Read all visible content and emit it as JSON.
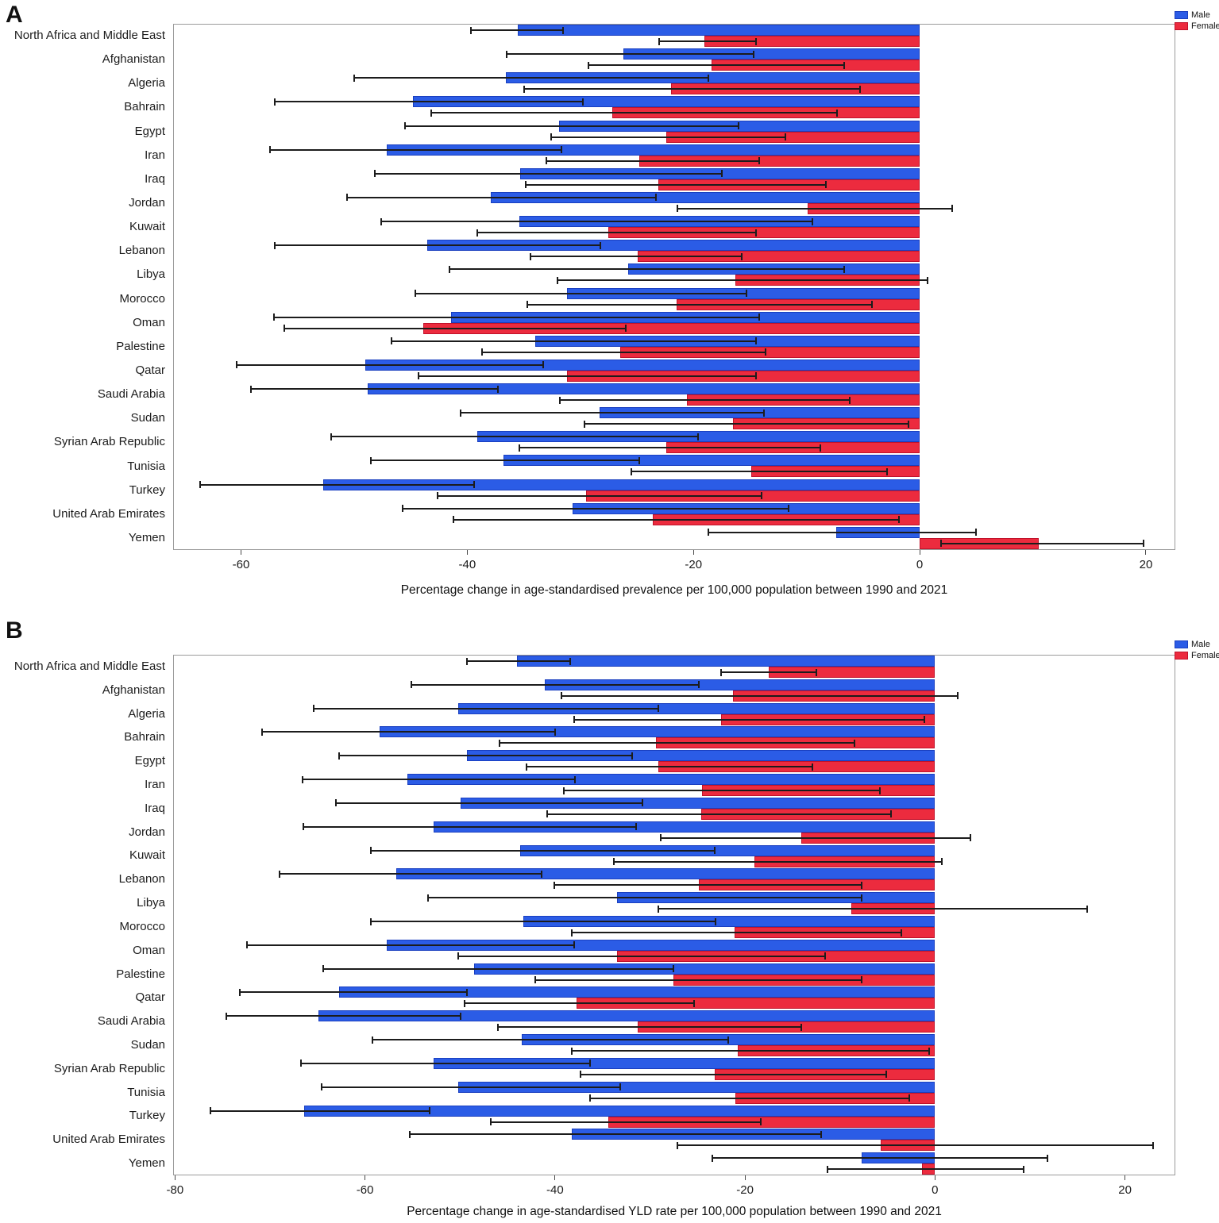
{
  "legend": {
    "male_label": "Male",
    "female_label": "Female"
  },
  "colors": {
    "male_fill": "#2B5CE6",
    "male_border": "#1A3FC0",
    "female_fill": "#EC2B3E",
    "female_border": "#C1122B",
    "error_bar": "#1c1c1c",
    "box_border": "#9b9b9b"
  },
  "chart_data": [
    {
      "type": "bar",
      "panel_label": "A",
      "orientation": "horizontal",
      "xlabel": "Percentage change in age-standardised prevalence per 100,000 population between 1990 and 2021",
      "xlim": [
        -66,
        22.6
      ],
      "xticks": [
        -60,
        -40,
        -20,
        0,
        20
      ],
      "legend_position": "top-right",
      "grid": false,
      "categories": [
        "North Africa and Middle East",
        "Afghanistan",
        "Algeria",
        "Bahrain",
        "Egypt",
        "Iran",
        "Iraq",
        "Jordan",
        "Kuwait",
        "Lebanon",
        "Libya",
        "Morocco",
        "Oman",
        "Palestine",
        "Qatar",
        "Saudi Arabia",
        "Sudan",
        "Syrian Arab Republic",
        "Tunisia",
        "Turkey",
        "United Arab Emirates",
        "Yemen"
      ],
      "series": [
        {
          "name": "Male",
          "values": [
            -35.5,
            -26.2,
            -36.6,
            -44.8,
            -31.9,
            -47.1,
            -35.3,
            -37.9,
            -35.4,
            -43.5,
            -25.8,
            -31.2,
            -41.4,
            -34.0,
            -49.0,
            -48.8,
            -28.3,
            -39.1,
            -36.8,
            -52.7,
            -30.7,
            -7.4
          ],
          "ci_low": [
            -39.7,
            -36.5,
            -50.0,
            -57.0,
            -45.5,
            -57.4,
            -48.2,
            -50.6,
            -47.6,
            -57.0,
            -41.6,
            -44.6,
            -57.1,
            -46.7,
            -60.4,
            -59.1,
            -40.6,
            -52.0,
            -48.5,
            -63.6,
            -45.7,
            -18.7
          ],
          "ci_high": [
            -31.5,
            -14.7,
            -18.7,
            -29.8,
            -16.0,
            -31.7,
            -17.5,
            -23.3,
            -9.5,
            -28.2,
            -6.7,
            -15.3,
            -14.2,
            -14.5,
            -33.3,
            -37.3,
            -13.8,
            -19.6,
            -24.8,
            -39.4,
            -11.6,
            5.0
          ]
        },
        {
          "name": "Female",
          "values": [
            -19.0,
            -18.4,
            -22.0,
            -27.2,
            -22.4,
            -24.8,
            -23.1,
            -9.9,
            -27.5,
            -24.9,
            -16.3,
            -21.5,
            -43.9,
            -26.5,
            -31.2,
            -20.6,
            -16.5,
            -22.4,
            -14.9,
            -29.5,
            -23.6,
            10.5
          ],
          "ci_low": [
            -23.0,
            -29.3,
            -35.0,
            -43.2,
            -32.6,
            -33.0,
            -34.8,
            -21.4,
            -39.1,
            -34.4,
            -32.0,
            -34.7,
            -56.2,
            -38.7,
            -44.3,
            -31.8,
            -29.6,
            -35.4,
            -25.5,
            -42.6,
            -41.2,
            1.9
          ],
          "ci_high": [
            -14.5,
            -6.7,
            -5.3,
            -7.3,
            -11.9,
            -14.2,
            -8.3,
            2.9,
            -14.5,
            -15.7,
            0.7,
            -4.2,
            -26.0,
            -13.6,
            -14.5,
            -6.2,
            -1.0,
            -8.8,
            -2.9,
            -14.0,
            -1.8,
            19.8
          ]
        }
      ]
    },
    {
      "type": "bar",
      "panel_label": "B",
      "orientation": "horizontal",
      "xlabel": "Percentage change in age-standardised YLD rate per 100,000 population between 1990 and 2021",
      "xlim": [
        -80.2,
        25.3
      ],
      "xticks": [
        -80,
        -60,
        -40,
        -20,
        0,
        20
      ],
      "legend_position": "top-right",
      "grid": false,
      "categories": [
        "North Africa and Middle East",
        "Afghanistan",
        "Algeria",
        "Bahrain",
        "Egypt",
        "Iran",
        "Iraq",
        "Jordan",
        "Kuwait",
        "Lebanon",
        "Libya",
        "Morocco",
        "Oman",
        "Palestine",
        "Qatar",
        "Saudi Arabia",
        "Sudan",
        "Syrian Arab Republic",
        "Tunisia",
        "Turkey",
        "United Arab Emirates",
        "Yemen"
      ],
      "series": [
        {
          "name": "Male",
          "values": [
            -44.0,
            -41.1,
            -50.2,
            -58.5,
            -49.3,
            -55.5,
            -49.9,
            -52.8,
            -43.7,
            -56.7,
            -33.5,
            -43.3,
            -57.7,
            -48.5,
            -62.7,
            -64.9,
            -43.5,
            -52.8,
            -50.2,
            -66.4,
            -38.2,
            -7.7
          ],
          "ci_low": [
            -49.3,
            -55.1,
            -65.4,
            -70.8,
            -62.7,
            -66.6,
            -63.1,
            -66.5,
            -59.4,
            -69.0,
            -53.4,
            -59.4,
            -72.4,
            -64.4,
            -73.2,
            -74.6,
            -59.2,
            -66.7,
            -64.6,
            -76.3,
            -55.3,
            -23.4
          ],
          "ci_high": [
            -38.4,
            -24.9,
            -29.1,
            -40.0,
            -31.9,
            -37.9,
            -30.8,
            -31.5,
            -23.2,
            -41.4,
            -7.7,
            -23.1,
            -38.0,
            -27.5,
            -49.3,
            -49.9,
            -21.8,
            -36.3,
            -33.1,
            -53.2,
            -12.0,
            11.8
          ]
        },
        {
          "name": "Female",
          "values": [
            -17.5,
            -21.3,
            -22.5,
            -29.4,
            -29.1,
            -24.5,
            -24.6,
            -14.1,
            -19.0,
            -24.9,
            -8.8,
            -21.1,
            -33.5,
            -27.5,
            -37.7,
            -31.3,
            -20.8,
            -23.2,
            -21.0,
            -34.4,
            -5.7,
            -1.4
          ],
          "ci_low": [
            -22.5,
            -39.3,
            -38.0,
            -45.8,
            -43.0,
            -39.1,
            -40.8,
            -28.9,
            -33.8,
            -40.1,
            -29.1,
            -38.2,
            -50.2,
            -42.1,
            -49.5,
            -46.0,
            -38.2,
            -37.3,
            -36.3,
            -46.8,
            -27.1,
            -11.3
          ],
          "ci_high": [
            -12.5,
            2.4,
            -1.1,
            -8.5,
            -12.9,
            -5.8,
            -4.6,
            3.7,
            0.7,
            -7.7,
            16.0,
            -3.5,
            -11.6,
            -7.7,
            -25.4,
            -14.1,
            -0.6,
            -5.1,
            -2.7,
            -18.3,
            23.0,
            9.3
          ]
        }
      ]
    }
  ]
}
